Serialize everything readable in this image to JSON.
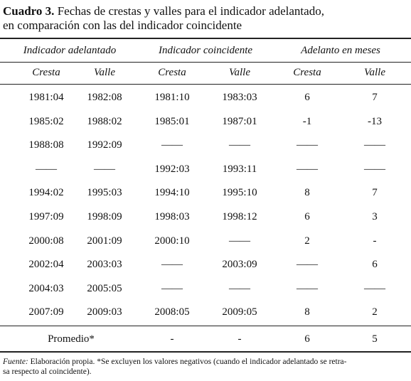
{
  "title": {
    "label": "Cuadro 3.",
    "lines": [
      "Fechas de crestas y valles para el indicador adelantado,",
      "en comparación con las del indicador coincidente"
    ]
  },
  "table": {
    "groups": [
      "Indicador adelantado",
      "Indicador coincidente",
      "Adelanto en meses"
    ],
    "columns": [
      "Cresta",
      "Valle",
      "Cresta",
      "Valle",
      "Cresta",
      "Valle"
    ],
    "rows": [
      [
        "1981:04",
        "1982:08",
        "1981:10",
        "1983:03",
        "6",
        "7"
      ],
      [
        "1985:02",
        "1988:02",
        "1985:01",
        "1987:01",
        "-1",
        "-13"
      ],
      [
        "1988:08",
        "1992:09",
        "——",
        "——",
        "——",
        "——"
      ],
      [
        "——",
        "——",
        "1992:03",
        "1993:11",
        "——",
        "——"
      ],
      [
        "1994:02",
        "1995:03",
        "1994:10",
        "1995:10",
        "8",
        "7"
      ],
      [
        "1997:09",
        "1998:09",
        "1998:03",
        "1998:12",
        "6",
        "3"
      ],
      [
        "2000:08",
        "2001:09",
        "2000:10",
        "——",
        "2",
        "-"
      ],
      [
        "2002:04",
        "2003:03",
        "——",
        "2003:09",
        "——",
        "6"
      ],
      [
        "2004:03",
        "2005:05",
        "——",
        "——",
        "——",
        "——"
      ],
      [
        "2007:09",
        "2009:03",
        "2008:05",
        "2009:05",
        "8",
        "2"
      ]
    ],
    "summary": {
      "label": "Promedio*",
      "cells": [
        "-",
        "-",
        "6",
        "5"
      ]
    }
  },
  "footnote": {
    "label": "Fuente:",
    "text": "Elaboración propia. *Se excluyen los valores negativos (cuando el indicador adelantado se retra-",
    "text2": "sa respecto al coincidente)."
  }
}
